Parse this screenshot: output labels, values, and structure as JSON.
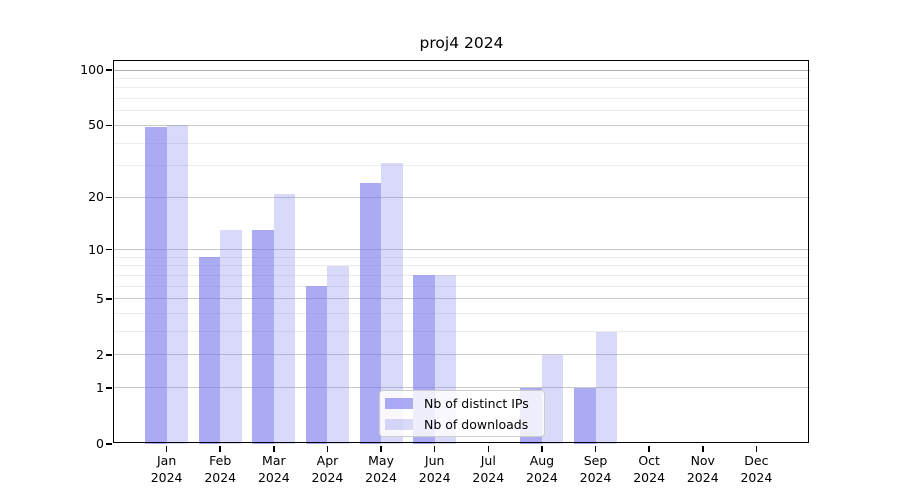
{
  "title": "proj4 2024",
  "chart_data": {
    "type": "bar",
    "title": "proj4 2024",
    "categories": [
      "Jan",
      "Feb",
      "Mar",
      "Apr",
      "May",
      "Jun",
      "Jul",
      "Aug",
      "Sep",
      "Oct",
      "Nov",
      "Dec"
    ],
    "year_label": "2024",
    "series": [
      {
        "name": "Nb of distinct IPs",
        "slug": "distinct-ips",
        "color": "rgba(119,119,238,0.62)",
        "values": [
          49,
          9,
          13,
          6,
          24,
          7,
          0,
          1,
          1,
          0,
          0,
          0
        ]
      },
      {
        "name": "Nb of downloads",
        "slug": "downloads",
        "color": "rgba(119,119,238,0.28)",
        "values": [
          50,
          13,
          21,
          8,
          31,
          7,
          0,
          2,
          3,
          0,
          0,
          0
        ]
      }
    ],
    "y_scale": "log10(1+x)",
    "y_tick_labels": [
      "0",
      "1",
      "2",
      "5",
      "10",
      "20",
      "50",
      "100"
    ],
    "y_tick_values": [
      0,
      1,
      2,
      5,
      10,
      20,
      50,
      100
    ],
    "y_minor_tick_values": [
      3,
      4,
      6,
      7,
      8,
      9,
      30,
      40,
      60,
      70,
      80,
      90
    ],
    "ylim": [
      0,
      115
    ],
    "xlabel": "",
    "ylabel": "",
    "grid": true,
    "legend_position": "lower center"
  },
  "legend": {
    "items": [
      {
        "label": "Nb of distinct IPs",
        "color": "rgba(119,119,238,0.62)"
      },
      {
        "label": "Nb of downloads",
        "color": "rgba(119,119,238,0.28)"
      }
    ]
  },
  "colors": {
    "background": "#ffffff",
    "bar_distinct_ips": "rgba(119,119,238,0.62)",
    "bar_downloads": "rgba(119,119,238,0.28)",
    "grid_major": "#c9c9c9",
    "grid_top_major": "#b0b0b0",
    "grid_minor": "#ececec",
    "axis": "#000000",
    "legend_border": "#cccccc"
  }
}
